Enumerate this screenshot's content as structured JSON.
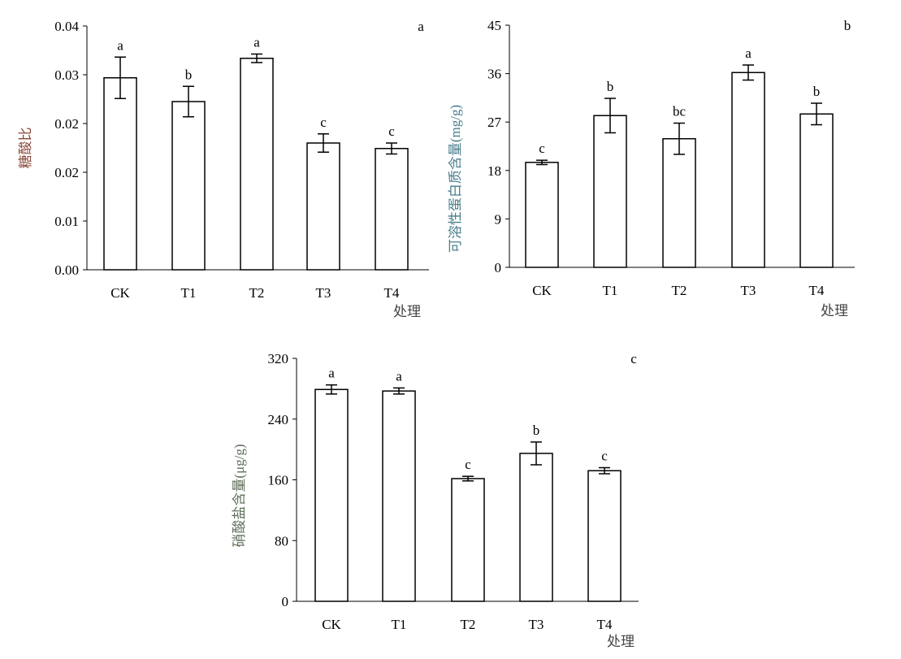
{
  "chart_data": [
    {
      "type": "bar",
      "panel_label": "a",
      "title": "",
      "xlabel": "处理",
      "ylabel": "糖酸比",
      "ylabel_color": "#8a4a3c",
      "categories": [
        "CK",
        "T1",
        "T2",
        "T3",
        "T4"
      ],
      "values": [
        0.0315,
        0.0276,
        0.0347,
        0.0208,
        0.0199
      ],
      "errors": [
        0.0034,
        0.0025,
        0.0007,
        0.0015,
        0.0009
      ],
      "significance": [
        "a",
        "b",
        "a",
        "c",
        "c"
      ],
      "ylim": [
        0,
        0.04
      ],
      "yticks": [
        0,
        0.008,
        0.016,
        0.024,
        0.032,
        0.04
      ],
      "ytick_labels": [
        "0.00",
        "0.01",
        "0.02",
        "0.02",
        "0.03",
        "0.04"
      ],
      "grid": false
    },
    {
      "type": "bar",
      "panel_label": "b",
      "title": "",
      "xlabel": "处理",
      "ylabel": "可溶性蛋白质含量(mg/g)",
      "ylabel_color": "#4a7f8c",
      "categories": [
        "CK",
        "T1",
        "T2",
        "T3",
        "T4"
      ],
      "values": [
        19.5,
        28.2,
        23.9,
        36.2,
        28.5
      ],
      "errors": [
        0.4,
        3.2,
        2.9,
        1.4,
        2.0
      ],
      "significance": [
        "c",
        "b",
        "bc",
        "a",
        "b"
      ],
      "ylim": [
        0,
        45
      ],
      "yticks": [
        0,
        9,
        18,
        27,
        36,
        45
      ],
      "ytick_labels": [
        "0",
        "9",
        "18",
        "27",
        "36",
        "45"
      ],
      "grid": false
    },
    {
      "type": "bar",
      "panel_label": "c",
      "title": "",
      "xlabel": "处理",
      "ylabel": "硝酸盐含量(μg/g)",
      "ylabel_color": "#5f6f5a",
      "categories": [
        "CK",
        "T1",
        "T2",
        "T3",
        "T4"
      ],
      "values": [
        279,
        277,
        161.6,
        194.8,
        172
      ],
      "errors": [
        6,
        4,
        3,
        15,
        4
      ],
      "significance": [
        "a",
        "a",
        "c",
        "b",
        "c"
      ],
      "ylim": [
        0,
        320
      ],
      "yticks": [
        0,
        80,
        160,
        240,
        320
      ],
      "ytick_labels": [
        "0",
        "80",
        "160",
        "240",
        "320"
      ],
      "grid": false
    }
  ]
}
